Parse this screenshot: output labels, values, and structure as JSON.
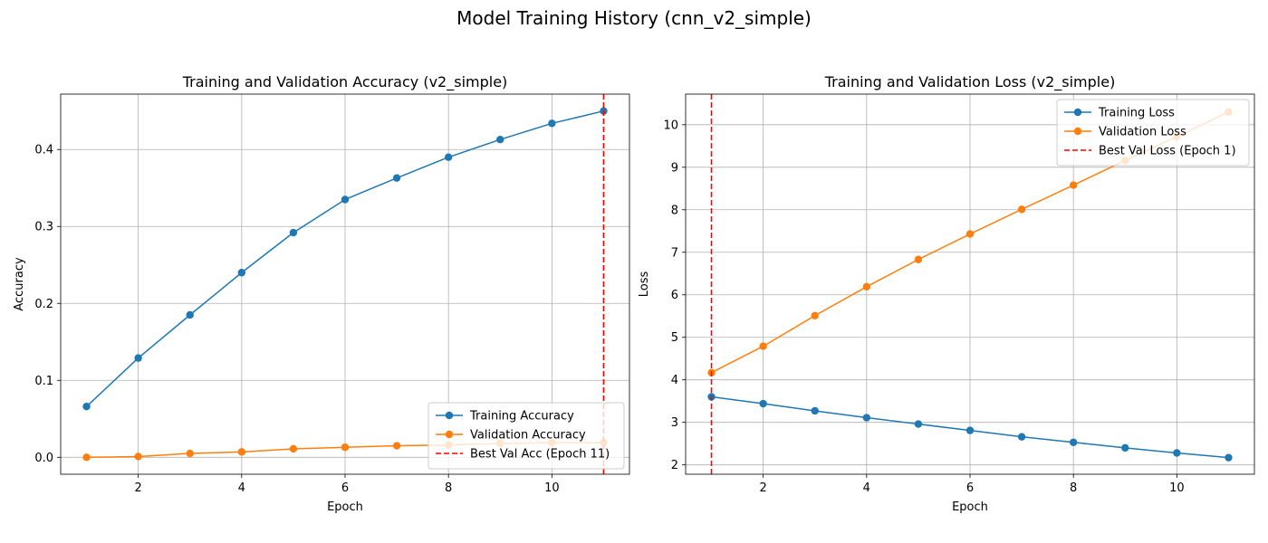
{
  "figure": {
    "suptitle": "Model Training History (cnn_v2_simple)"
  },
  "chart_data": [
    {
      "type": "line",
      "title": "Training and Validation Accuracy (v2_simple)",
      "xlabel": "Epoch",
      "ylabel": "Accuracy",
      "x": [
        1,
        2,
        3,
        4,
        5,
        6,
        7,
        8,
        9,
        10,
        11
      ],
      "xlim": [
        0.5,
        11.5
      ],
      "ylim": [
        -0.022,
        0.472
      ],
      "xticks": [
        2,
        4,
        6,
        8,
        10
      ],
      "yticks": [
        0.0,
        0.1,
        0.2,
        0.3,
        0.4
      ],
      "ytick_labels": [
        "0.0",
        "0.1",
        "0.2",
        "0.3",
        "0.4"
      ],
      "grid": true,
      "legend_position": "lower-right",
      "series": [
        {
          "name": "Training Accuracy",
          "color": "#1f77b4",
          "marker": "circle",
          "values": [
            0.066,
            0.129,
            0.185,
            0.24,
            0.292,
            0.335,
            0.363,
            0.39,
            0.413,
            0.434,
            0.45
          ]
        },
        {
          "name": "Validation Accuracy",
          "color": "#ff7f0e",
          "marker": "circle",
          "values": [
            0.0,
            0.001,
            0.005,
            0.007,
            0.011,
            0.013,
            0.015,
            0.016,
            0.018,
            0.019,
            0.019
          ]
        }
      ],
      "vline": {
        "x": 11,
        "name": "Best Val Acc (Epoch 11)",
        "color": "#ff0000",
        "style": "dashed"
      }
    },
    {
      "type": "line",
      "title": "Training and Validation Loss (v2_simple)",
      "xlabel": "Epoch",
      "ylabel": "Loss",
      "x": [
        1,
        2,
        3,
        4,
        5,
        6,
        7,
        8,
        9,
        10,
        11
      ],
      "xlim": [
        0.5,
        11.5
      ],
      "ylim": [
        1.78,
        10.72
      ],
      "xticks": [
        2,
        4,
        6,
        8,
        10
      ],
      "yticks": [
        2,
        3,
        4,
        5,
        6,
        7,
        8,
        9,
        10
      ],
      "ytick_labels": [
        "2",
        "3",
        "4",
        "5",
        "6",
        "7",
        "8",
        "9",
        "10"
      ],
      "grid": true,
      "legend_position": "upper-right",
      "series": [
        {
          "name": "Training Loss",
          "color": "#1f77b4",
          "marker": "circle",
          "values": [
            3.6,
            3.44,
            3.27,
            3.11,
            2.96,
            2.81,
            2.66,
            2.53,
            2.4,
            2.28,
            2.17
          ]
        },
        {
          "name": "Validation Loss",
          "color": "#ff7f0e",
          "marker": "circle",
          "values": [
            4.17,
            4.79,
            5.51,
            6.19,
            6.83,
            7.43,
            8.01,
            8.58,
            9.16,
            9.72,
            10.3
          ]
        }
      ],
      "vline": {
        "x": 1,
        "name": "Best Val Loss (Epoch 1)",
        "color": "#ff0000",
        "style": "dashed"
      }
    }
  ]
}
